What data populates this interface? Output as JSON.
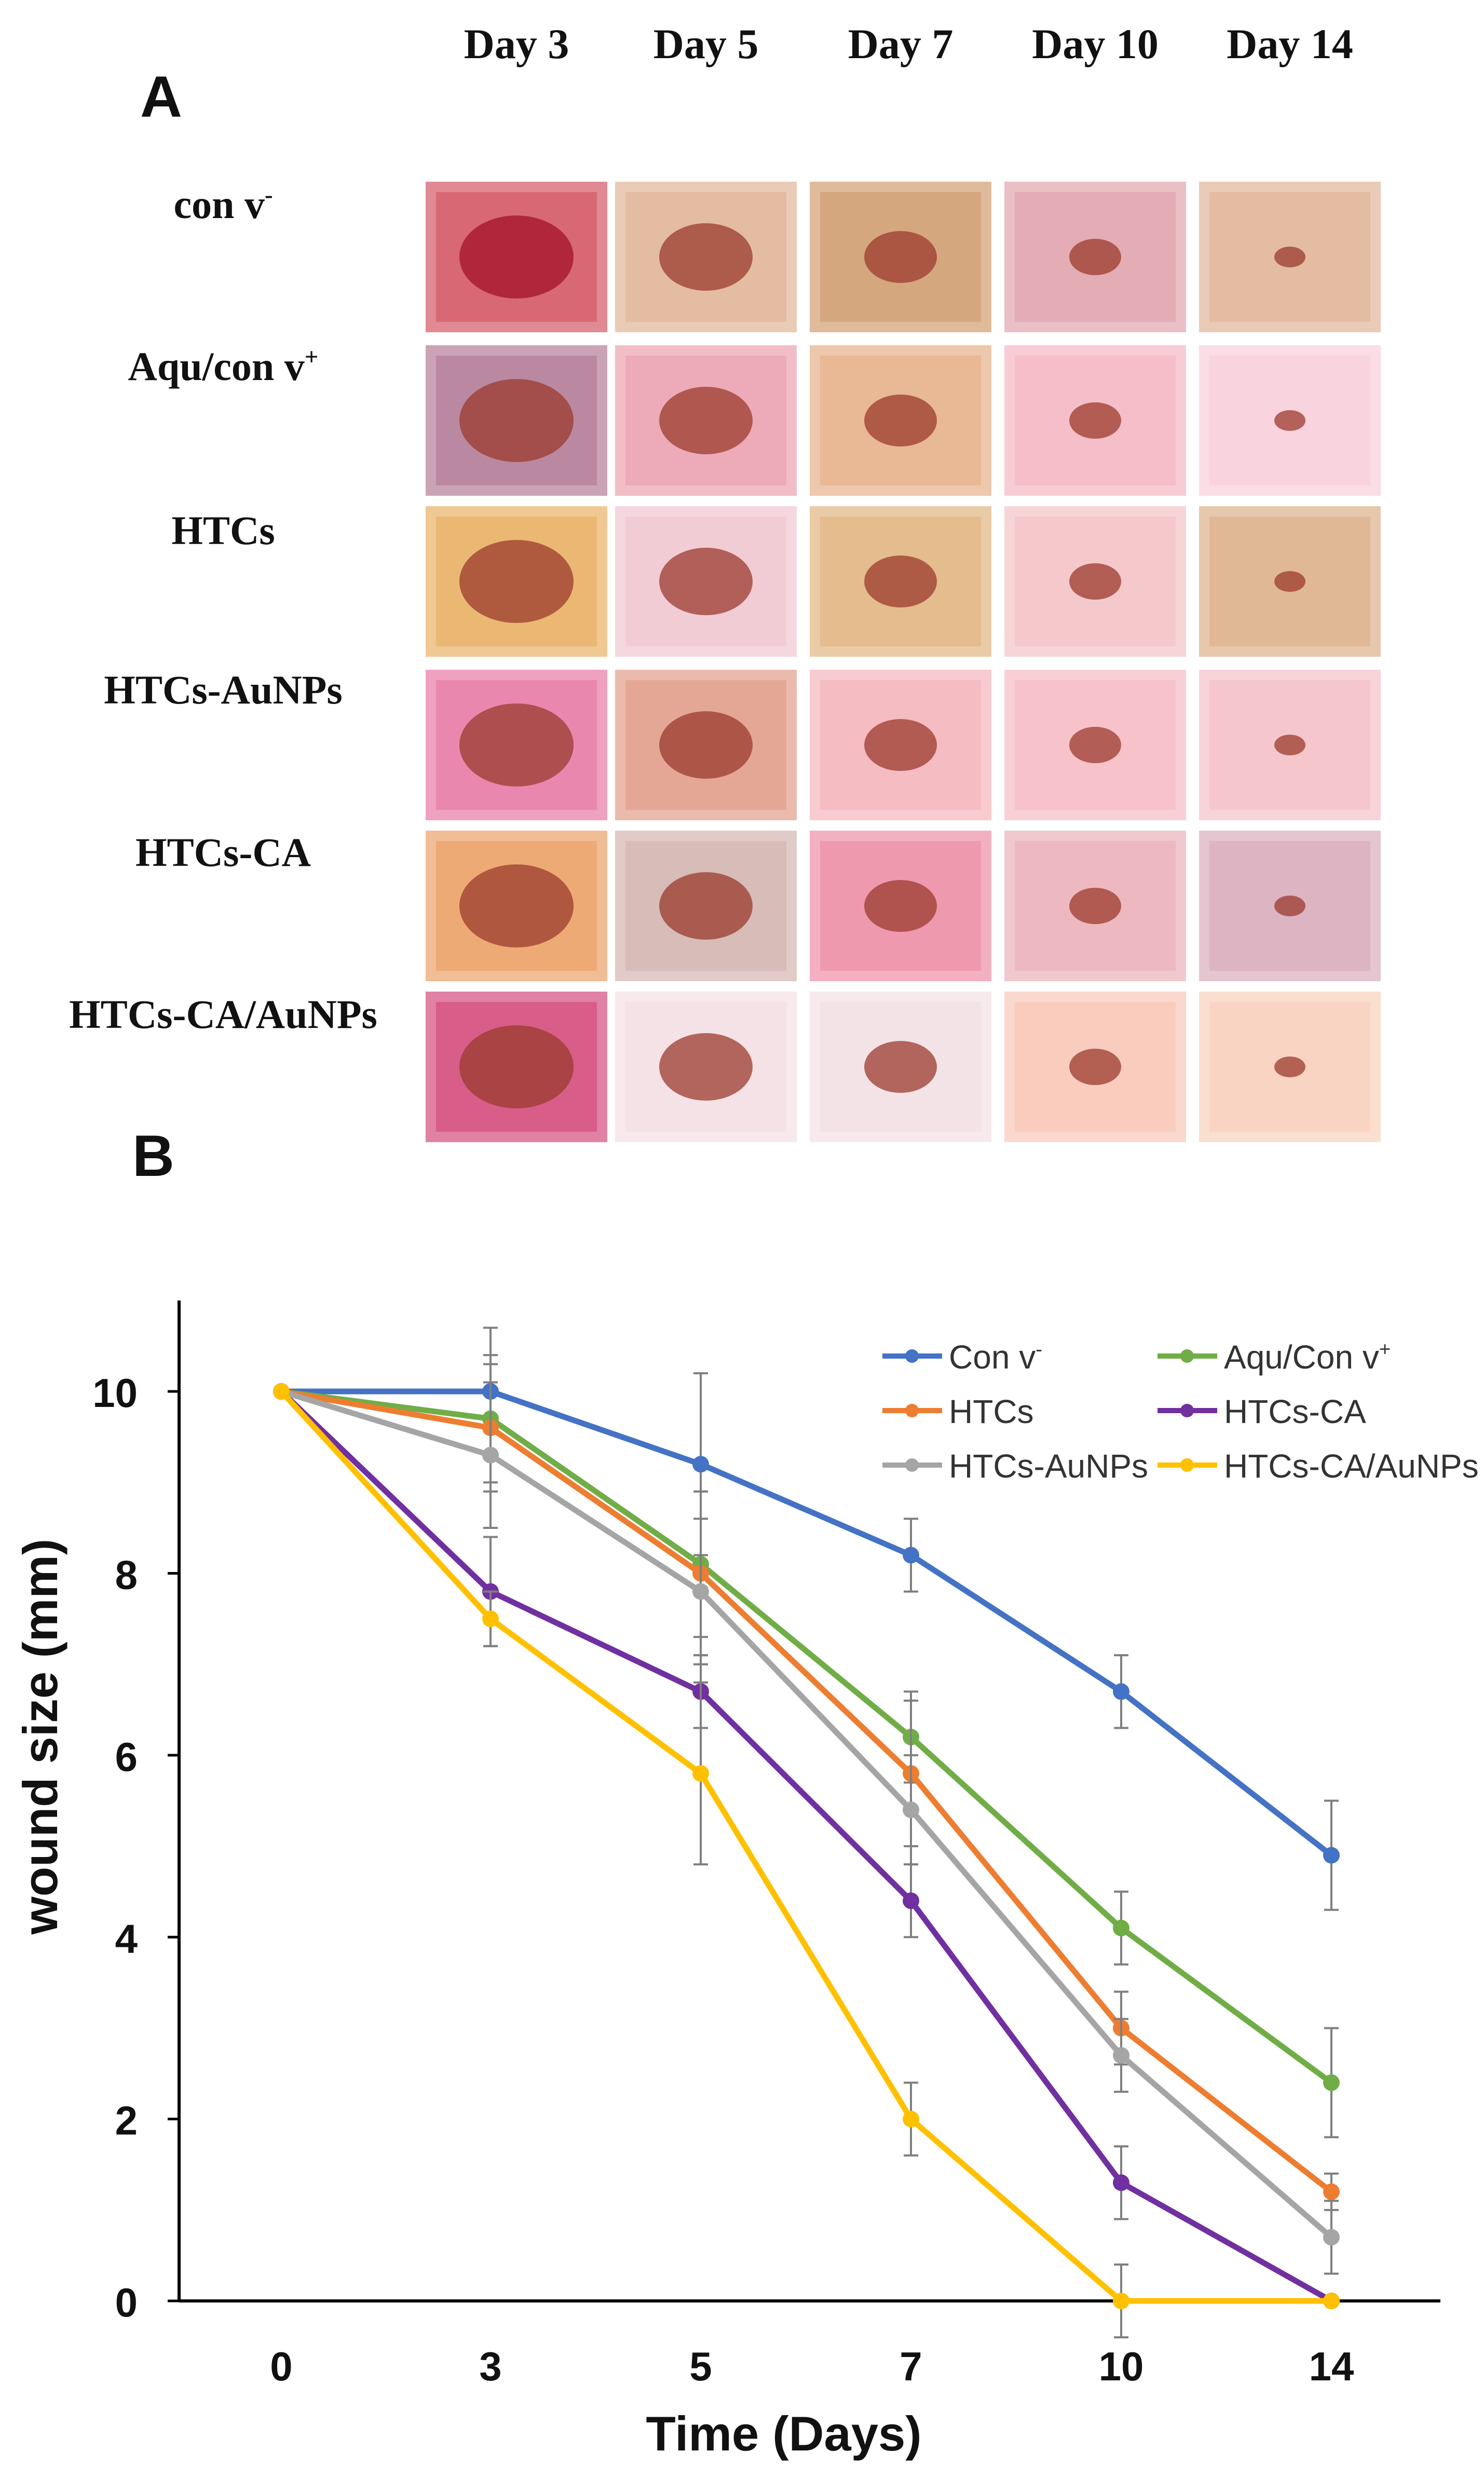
{
  "panel_a": {
    "label": "A",
    "columns": [
      "Day 3",
      "Day 5",
      "Day 7",
      "Day 10",
      "Day 14"
    ],
    "rows": [
      {
        "label": "con v",
        "sup": "-"
      },
      {
        "label": "Aqu/con v",
        "sup": "+"
      },
      {
        "label": "HTCs",
        "sup": ""
      },
      {
        "label": "HTCs-AuNPs",
        "sup": ""
      },
      {
        "label": "HTCs-CA",
        "sup": ""
      },
      {
        "label": "HTCs-CA/AuNPs",
        "sup": ""
      }
    ],
    "photo_tones": [
      [
        "#c92a3b",
        "#d8a07a",
        "#c4834b",
        "#d98a95",
        "#d9a07c"
      ],
      [
        "#9e5a7a",
        "#e6889a",
        "#e09a6a",
        "#f3a3b1",
        "#f6c1cf"
      ],
      [
        "#e29b3a",
        "#ecb7c4",
        "#d9a05f",
        "#f1b3b7",
        "#d59a6a"
      ],
      [
        "#e2558c",
        "#d9846a",
        "#f0a0a8",
        "#f4a8b4",
        "#f2aeb8"
      ],
      [
        "#e6873d",
        "#c7a09b",
        "#e8708c",
        "#e69aa6",
        "#cf96a8"
      ],
      [
        "#c9195a",
        "#f1d7dc",
        "#efd8dd",
        "#f5b8a4",
        "#f5c2a9"
      ]
    ]
  },
  "chart_data": {
    "panel_label": "B",
    "type": "line",
    "x": [
      0,
      3,
      5,
      7,
      10,
      14
    ],
    "x_tick_labels": [
      "0",
      "3",
      "5",
      "7",
      "10",
      "14"
    ],
    "xlabel": "Time (Days)",
    "ylabel": "wound size (mm)",
    "ylim": [
      0,
      11
    ],
    "y_ticks": [
      0,
      2,
      4,
      6,
      8,
      10
    ],
    "grid": false,
    "legend_position": "top-right",
    "series": [
      {
        "name": "Con v",
        "sup": "-",
        "color": "#4472C4",
        "values": [
          10,
          10,
          9.2,
          8.2,
          6.7,
          4.9
        ],
        "errors": [
          0,
          0.7,
          1.0,
          0.4,
          0.4,
          0.6
        ]
      },
      {
        "name": "Aqu/Con v",
        "sup": "+",
        "color": "#70AD47",
        "values": [
          10,
          9.7,
          8.1,
          6.2,
          4.1,
          2.4
        ],
        "errors": [
          0,
          0.7,
          0.8,
          0.5,
          0.4,
          0.6
        ]
      },
      {
        "name": "HTCs",
        "sup": "",
        "color": "#ED7D31",
        "values": [
          10,
          9.6,
          8.0,
          5.8,
          3.0,
          1.2
        ],
        "errors": [
          0,
          0.7,
          0.9,
          0.8,
          0.4,
          0.2
        ]
      },
      {
        "name": "HTCs-CA",
        "sup": "",
        "color": "#7030A0",
        "values": [
          10,
          7.8,
          6.7,
          4.4,
          1.3,
          0.0
        ],
        "errors": [
          0,
          0.6,
          0.4,
          0.4,
          0.4,
          0.0
        ]
      },
      {
        "name": "HTCs-AuNPs",
        "sup": "",
        "color": "#A5A5A5",
        "values": [
          10,
          9.3,
          7.8,
          5.4,
          2.7,
          0.7
        ],
        "errors": [
          0,
          0.8,
          0.8,
          0.6,
          0.4,
          0.4
        ]
      },
      {
        "name": "HTCs-CA/AuNPs",
        "sup": "",
        "color": "#FFC000",
        "values": [
          10,
          7.5,
          5.8,
          2.0,
          0.0,
          0.0
        ],
        "errors": [
          0,
          0.3,
          1.0,
          0.4,
          0.4,
          0.0
        ]
      }
    ]
  }
}
